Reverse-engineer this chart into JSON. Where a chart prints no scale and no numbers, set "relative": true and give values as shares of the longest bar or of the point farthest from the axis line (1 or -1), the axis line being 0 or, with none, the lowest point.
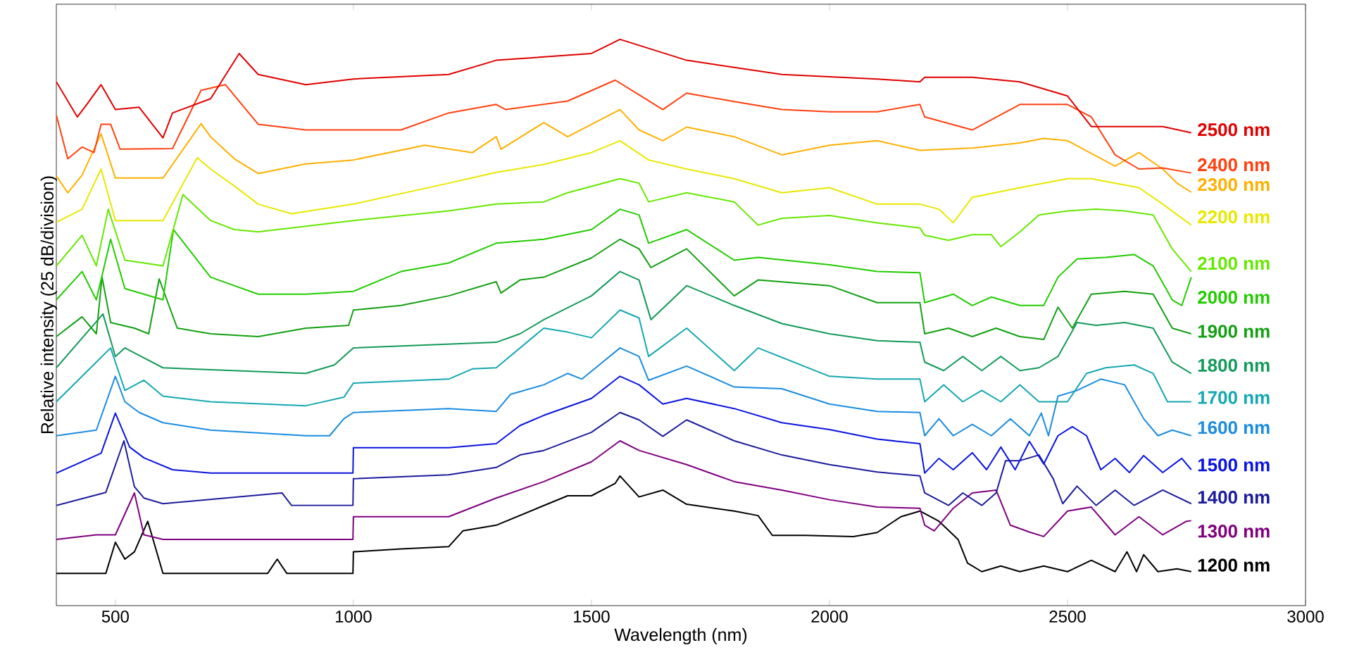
{
  "chart_data": {
    "type": "line",
    "relative": true,
    "xlabel": "Wavelength (nm)",
    "ylabel": "Relative intensity (25 dB/division)",
    "xlim": [
      376,
      3000
    ],
    "xticks": [
      500,
      1000,
      1500,
      2000,
      2500,
      3000
    ],
    "grid": false,
    "legend": false,
    "series": [
      {
        "name": "1200 nm",
        "color": "#000000",
        "x": [
          376,
          480,
          500,
          520,
          540,
          568,
          600,
          820,
          840,
          860,
          999,
          1000,
          1100,
          1200,
          1230,
          1300,
          1450,
          1500,
          1550,
          1560,
          1600,
          1650,
          1700,
          1800,
          1850,
          1880,
          1950,
          2050,
          2100,
          2150,
          2190,
          2230,
          2270,
          2290,
          2320,
          2360,
          2400,
          2450,
          2500,
          2550,
          2600,
          2625,
          2645,
          2660,
          2690,
          2730,
          2760
        ],
        "values": [
          0.057,
          0.057,
          0.112,
          0.082,
          0.095,
          0.149,
          0.057,
          0.057,
          0.082,
          0.057,
          0.057,
          0.095,
          0.1,
          0.104,
          0.132,
          0.142,
          0.194,
          0.194,
          0.216,
          0.229,
          0.192,
          0.204,
          0.179,
          0.167,
          0.159,
          0.124,
          0.124,
          0.122,
          0.129,
          0.157,
          0.167,
          0.149,
          0.117,
          0.075,
          0.06,
          0.07,
          0.06,
          0.07,
          0.06,
          0.08,
          0.06,
          0.095,
          0.06,
          0.09,
          0.06,
          0.065,
          0.06
        ]
      },
      {
        "name": "1300 nm",
        "color": "#800080",
        "x": [
          376,
          460,
          500,
          540,
          560,
          600,
          999,
          1000,
          1200,
          1300,
          1400,
          1500,
          1560,
          1600,
          1700,
          1800,
          1900,
          2000,
          2100,
          2190,
          2200,
          2220,
          2260,
          2300,
          2350,
          2380,
          2420,
          2450,
          2500,
          2550,
          2600,
          2650,
          2700,
          2750,
          2760
        ],
        "values": [
          0.117,
          0.125,
          0.125,
          0.199,
          0.125,
          0.117,
          0.117,
          0.157,
          0.157,
          0.19,
          0.219,
          0.254,
          0.291,
          0.274,
          0.249,
          0.219,
          0.204,
          0.187,
          0.174,
          0.172,
          0.142,
          0.132,
          0.172,
          0.199,
          0.204,
          0.142,
          0.13,
          0.122,
          0.167,
          0.174,
          0.125,
          0.157,
          0.125,
          0.149,
          0.15
        ]
      },
      {
        "name": "1400 nm",
        "color": "#1c1c9c",
        "x": [
          376,
          480,
          518,
          540,
          560,
          600,
          850,
          870,
          999,
          1000,
          1200,
          1300,
          1350,
          1400,
          1500,
          1560,
          1600,
          1650,
          1700,
          1800,
          1900,
          2000,
          2100,
          2190,
          2200,
          2250,
          2280,
          2320,
          2350,
          2370,
          2400,
          2440,
          2470,
          2490,
          2520,
          2560,
          2600,
          2640,
          2700,
          2760
        ],
        "values": [
          0.177,
          0.2,
          0.291,
          0.21,
          0.19,
          0.18,
          0.199,
          0.177,
          0.177,
          0.224,
          0.231,
          0.244,
          0.266,
          0.274,
          0.306,
          0.341,
          0.328,
          0.299,
          0.328,
          0.291,
          0.266,
          0.249,
          0.236,
          0.229,
          0.199,
          0.177,
          0.199,
          0.177,
          0.199,
          0.256,
          0.256,
          0.266,
          0.224,
          0.18,
          0.211,
          0.177,
          0.204,
          0.177,
          0.204,
          0.18
        ]
      },
      {
        "name": "1500 nm",
        "color": "#0a14e0",
        "x": [
          376,
          470,
          500,
          530,
          560,
          620,
          700,
          999,
          1000,
          1200,
          1300,
          1350,
          1400,
          1500,
          1560,
          1600,
          1650,
          1700,
          1800,
          1900,
          2000,
          2100,
          2190,
          2200,
          2230,
          2260,
          2300,
          2330,
          2360,
          2390,
          2420,
          2450,
          2480,
          2510,
          2540,
          2570,
          2600,
          2630,
          2660,
          2700,
          2740,
          2760
        ],
        "values": [
          0.234,
          0.269,
          0.34,
          0.28,
          0.261,
          0.24,
          0.234,
          0.234,
          0.279,
          0.279,
          0.286,
          0.318,
          0.336,
          0.366,
          0.405,
          0.39,
          0.356,
          0.366,
          0.348,
          0.323,
          0.311,
          0.294,
          0.286,
          0.234,
          0.26,
          0.24,
          0.27,
          0.24,
          0.28,
          0.24,
          0.29,
          0.25,
          0.3,
          0.316,
          0.3,
          0.24,
          0.26,
          0.235,
          0.265,
          0.235,
          0.26,
          0.24
        ]
      },
      {
        "name": "1600 nm",
        "color": "#1a8ce0",
        "x": [
          376,
          460,
          500,
          520,
          550,
          600,
          700,
          900,
          950,
          980,
          1000,
          1200,
          1300,
          1330,
          1400,
          1450,
          1480,
          1560,
          1600,
          1620,
          1700,
          1800,
          1900,
          2000,
          2100,
          2190,
          2200,
          2230,
          2260,
          2300,
          2340,
          2380,
          2420,
          2445,
          2460,
          2480,
          2520,
          2570,
          2620,
          2660,
          2690,
          2720,
          2760
        ],
        "values": [
          0.3,
          0.31,
          0.405,
          0.36,
          0.341,
          0.323,
          0.31,
          0.3,
          0.3,
          0.33,
          0.341,
          0.348,
          0.343,
          0.373,
          0.39,
          0.41,
          0.4,
          0.455,
          0.44,
          0.398,
          0.423,
          0.386,
          0.383,
          0.356,
          0.343,
          0.341,
          0.3,
          0.33,
          0.3,
          0.32,
          0.3,
          0.33,
          0.3,
          0.34,
          0.3,
          0.37,
          0.38,
          0.4,
          0.39,
          0.33,
          0.3,
          0.31,
          0.3
        ]
      },
      {
        "name": "1700 nm",
        "color": "#14a8b0",
        "x": [
          376,
          490,
          520,
          560,
          600,
          700,
          900,
          980,
          1000,
          1200,
          1250,
          1300,
          1350,
          1400,
          1450,
          1500,
          1560,
          1600,
          1620,
          1700,
          1800,
          1850,
          2000,
          2100,
          2190,
          2200,
          2240,
          2280,
          2320,
          2360,
          2400,
          2440,
          2500,
          2540,
          2580,
          2640,
          2680,
          2710,
          2760
        ],
        "values": [
          0.36,
          0.455,
          0.38,
          0.398,
          0.37,
          0.36,
          0.353,
          0.368,
          0.393,
          0.4,
          0.418,
          0.42,
          0.455,
          0.49,
          0.483,
          0.473,
          0.522,
          0.508,
          0.44,
          0.49,
          0.415,
          0.455,
          0.405,
          0.4,
          0.4,
          0.36,
          0.39,
          0.36,
          0.38,
          0.36,
          0.39,
          0.36,
          0.36,
          0.41,
          0.42,
          0.425,
          0.41,
          0.36,
          0.36
        ]
      },
      {
        "name": "1800 nm",
        "color": "#129a5a",
        "x": [
          376,
          474,
          500,
          520,
          600,
          900,
          960,
          1000,
          1300,
          1350,
          1400,
          1500,
          1560,
          1600,
          1625,
          1700,
          1800,
          1900,
          2000,
          2100,
          2190,
          2200,
          2240,
          2280,
          2320,
          2360,
          2400,
          2440,
          2480,
          2520,
          2560,
          2620,
          2680,
          2720,
          2760
        ],
        "values": [
          0.42,
          0.515,
          0.44,
          0.455,
          0.42,
          0.41,
          0.425,
          0.455,
          0.465,
          0.48,
          0.505,
          0.547,
          0.59,
          0.575,
          0.505,
          0.565,
          0.53,
          0.498,
          0.48,
          0.468,
          0.465,
          0.43,
          0.415,
          0.44,
          0.415,
          0.44,
          0.415,
          0.42,
          0.44,
          0.5,
          0.495,
          0.5,
          0.49,
          0.43,
          0.41
        ]
      },
      {
        "name": "1900 nm",
        "color": "#12a012",
        "x": [
          376,
          430,
          460,
          472,
          490,
          540,
          570,
          592,
          630,
          700,
          800,
          900,
          990,
          1000,
          1100,
          1200,
          1300,
          1310,
          1350,
          1400,
          1500,
          1560,
          1600,
          1625,
          1700,
          1800,
          1850,
          2000,
          2100,
          2190,
          2200,
          2250,
          2300,
          2350,
          2400,
          2450,
          2480,
          2510,
          2550,
          2620,
          2680,
          2720,
          2760
        ],
        "values": [
          0.475,
          0.51,
          0.48,
          0.58,
          0.5,
          0.49,
          0.48,
          0.577,
          0.49,
          0.48,
          0.475,
          0.49,
          0.495,
          0.522,
          0.53,
          0.547,
          0.572,
          0.552,
          0.575,
          0.58,
          0.614,
          0.647,
          0.63,
          0.597,
          0.63,
          0.547,
          0.575,
          0.565,
          0.535,
          0.535,
          0.48,
          0.49,
          0.475,
          0.49,
          0.475,
          0.47,
          0.527,
          0.49,
          0.55,
          0.555,
          0.55,
          0.49,
          0.48
        ]
      },
      {
        "name": "2000 nm",
        "color": "#22cc00",
        "x": [
          376,
          430,
          460,
          490,
          520,
          600,
          622,
          700,
          800,
          900,
          1000,
          1100,
          1200,
          1300,
          1400,
          1500,
          1560,
          1600,
          1620,
          1700,
          1800,
          1850,
          2000,
          2100,
          2190,
          2200,
          2260,
          2300,
          2340,
          2400,
          2450,
          2480,
          2520,
          2580,
          2640,
          2680,
          2720,
          2740,
          2760
        ],
        "values": [
          0.54,
          0.59,
          0.54,
          0.647,
          0.56,
          0.54,
          0.664,
          0.58,
          0.55,
          0.55,
          0.555,
          0.59,
          0.605,
          0.64,
          0.647,
          0.664,
          0.7,
          0.69,
          0.64,
          0.664,
          0.61,
          0.615,
          0.602,
          0.59,
          0.588,
          0.535,
          0.55,
          0.53,
          0.545,
          0.53,
          0.53,
          0.58,
          0.612,
          0.615,
          0.62,
          0.6,
          0.54,
          0.53,
          0.58
        ]
      },
      {
        "name": "2100 nm",
        "color": "#66e800",
        "x": [
          376,
          430,
          460,
          485,
          520,
          600,
          642,
          700,
          750,
          800,
          1000,
          1200,
          1300,
          1400,
          1450,
          1560,
          1600,
          1620,
          1700,
          1800,
          1850,
          1900,
          2000,
          2100,
          2190,
          2200,
          2250,
          2300,
          2340,
          2360,
          2400,
          2440,
          2500,
          2560,
          2620,
          2680,
          2720,
          2760
        ],
        "values": [
          0.6,
          0.654,
          0.6,
          0.7,
          0.61,
          0.6,
          0.726,
          0.68,
          0.664,
          0.66,
          0.68,
          0.697,
          0.709,
          0.713,
          0.729,
          0.754,
          0.746,
          0.713,
          0.729,
          0.713,
          0.672,
          0.684,
          0.689,
          0.676,
          0.667,
          0.654,
          0.645,
          0.655,
          0.655,
          0.634,
          0.66,
          0.69,
          0.697,
          0.7,
          0.697,
          0.69,
          0.63,
          0.59
        ]
      },
      {
        "name": "2200 nm",
        "color": "#e8e800",
        "x": [
          376,
          430,
          470,
          500,
          600,
          672,
          700,
          750,
          800,
          870,
          1000,
          1200,
          1300,
          1400,
          1500,
          1560,
          1620,
          1700,
          1800,
          1900,
          2000,
          2100,
          2190,
          2230,
          2260,
          2300,
          2400,
          2500,
          2550,
          2650,
          2700,
          2760
        ],
        "values": [
          0.677,
          0.7,
          0.771,
          0.68,
          0.68,
          0.791,
          0.771,
          0.741,
          0.709,
          0.692,
          0.709,
          0.746,
          0.765,
          0.779,
          0.8,
          0.821,
          0.787,
          0.771,
          0.754,
          0.729,
          0.738,
          0.709,
          0.709,
          0.7,
          0.676,
          0.721,
          0.738,
          0.754,
          0.754,
          0.738,
          0.709,
          0.672
        ]
      },
      {
        "name": "2300 nm",
        "color": "#ffb000",
        "x": [
          376,
          400,
          430,
          470,
          500,
          600,
          680,
          700,
          750,
          800,
          900,
          1000,
          1150,
          1250,
          1300,
          1310,
          1400,
          1450,
          1560,
          1600,
          1650,
          1700,
          1800,
          1900,
          2000,
          2100,
          2190,
          2300,
          2400,
          2450,
          2500,
          2600,
          2650,
          2700,
          2730,
          2760
        ],
        "values": [
          0.759,
          0.729,
          0.76,
          0.833,
          0.755,
          0.755,
          0.851,
          0.828,
          0.789,
          0.763,
          0.78,
          0.787,
          0.813,
          0.8,
          0.828,
          0.806,
          0.853,
          0.828,
          0.876,
          0.84,
          0.821,
          0.845,
          0.828,
          0.796,
          0.813,
          0.821,
          0.804,
          0.808,
          0.817,
          0.825,
          0.821,
          0.776,
          0.8,
          0.771,
          0.746,
          0.73
        ]
      },
      {
        "name": "2400 nm",
        "color": "#ff4010",
        "x": [
          376,
          400,
          430,
          455,
          470,
          490,
          510,
          620,
          680,
          731,
          800,
          900,
          1000,
          1100,
          1200,
          1300,
          1320,
          1450,
          1550,
          1600,
          1650,
          1700,
          1800,
          1900,
          2000,
          2100,
          2190,
          2200,
          2300,
          2400,
          2500,
          2550,
          2600,
          2650,
          2700,
          2760
        ],
        "values": [
          0.866,
          0.789,
          0.81,
          0.8,
          0.85,
          0.85,
          0.806,
          0.807,
          0.91,
          0.92,
          0.85,
          0.84,
          0.84,
          0.84,
          0.87,
          0.885,
          0.876,
          0.891,
          0.928,
          0.902,
          0.876,
          0.905,
          0.89,
          0.876,
          0.872,
          0.872,
          0.885,
          0.863,
          0.84,
          0.885,
          0.885,
          0.863,
          0.796,
          0.771,
          0.773,
          0.764
        ]
      },
      {
        "name": "2500 nm",
        "color": "#e00000",
        "x": [
          376,
          420,
          440,
          470,
          500,
          550,
          600,
          620,
          700,
          760,
          800,
          900,
          1000,
          1200,
          1300,
          1500,
          1560,
          1700,
          1900,
          2100,
          2190,
          2200,
          2300,
          2400,
          2500,
          2550,
          2600,
          2650,
          2700,
          2760
        ],
        "values": [
          0.925,
          0.863,
          0.885,
          0.92,
          0.876,
          0.88,
          0.826,
          0.87,
          0.895,
          0.975,
          0.938,
          0.92,
          0.93,
          0.938,
          0.963,
          0.975,
          1.0,
          0.963,
          0.938,
          0.93,
          0.925,
          0.933,
          0.933,
          0.925,
          0.9,
          0.846,
          0.846,
          0.846,
          0.846,
          0.835
        ]
      }
    ]
  }
}
